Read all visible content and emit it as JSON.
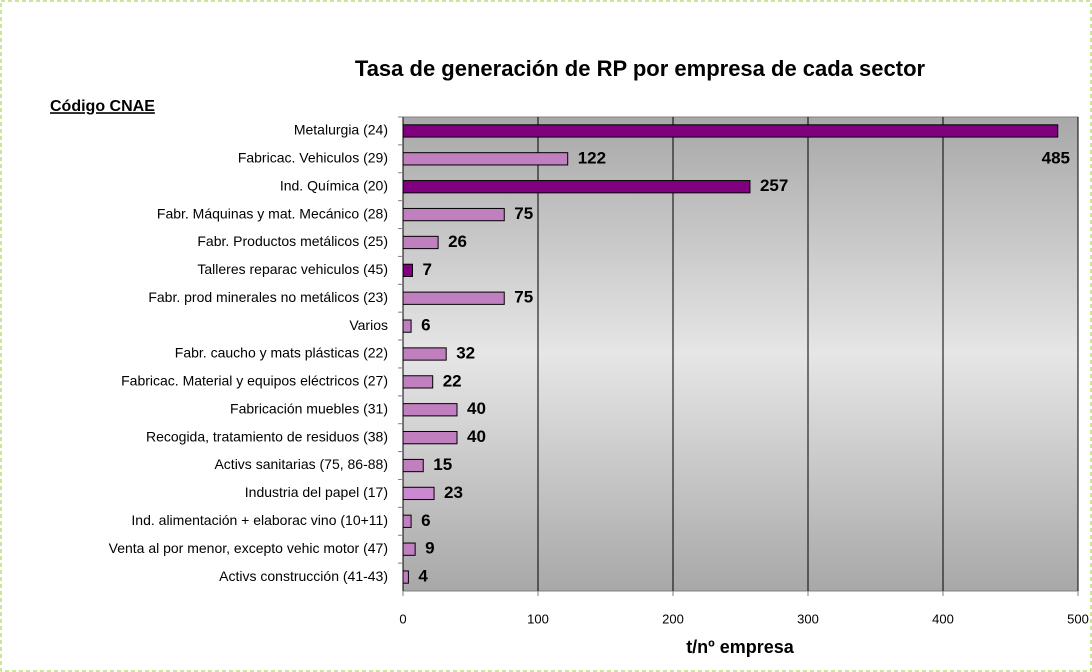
{
  "chart_data": {
    "type": "bar",
    "orientation": "horizontal",
    "title": "Tasa de generación de RP por empresa de cada sector",
    "y_axis_label": "Código CNAE",
    "x_axis_label": "t/nº empresa",
    "categories": [
      "Metalurgia (24)",
      "Fabricac. Vehiculos (29)",
      "Ind. Química (20)",
      "Fabr. Máquinas y mat. Mecánico (28)",
      "Fabr. Productos metálicos (25)",
      "Talleres reparac vehiculos (45)",
      "Fabr. prod minerales no metálicos (23)",
      "Varios",
      "Fabr. caucho y mats plásticas (22)",
      "Fabricac. Material y equipos eléctricos (27)",
      "Fabricación muebles (31)",
      "Recogida, tratamiento de residuos (38)",
      "Activs sanitarias (75, 86-88)",
      "Industria del papel (17)",
      "Ind. alimentación + elaborac vino (10+11)",
      "Venta al por menor, excepto vehic motor (47)",
      "Activs construcción (41-43)"
    ],
    "values": [
      485,
      122,
      257,
      75,
      26,
      7,
      75,
      6,
      32,
      22,
      40,
      40,
      15,
      23,
      6,
      9,
      4
    ],
    "colors": [
      "#800080",
      "#c080c0",
      "#800080",
      "#c080c0",
      "#c080c0",
      "#800080",
      "#c080c0",
      "#c080c0",
      "#c080c0",
      "#c080c0",
      "#c080c0",
      "#c080c0",
      "#c080c0",
      "#cc88d0",
      "#c080c0",
      "#c080c0",
      "#c080c0"
    ],
    "xlim": [
      0,
      500
    ],
    "xticks": [
      0,
      100,
      200,
      300,
      400,
      500
    ],
    "grid": true
  }
}
